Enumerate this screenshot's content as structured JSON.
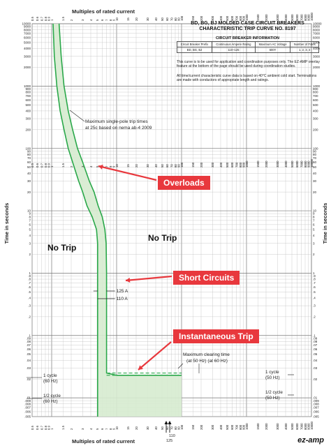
{
  "chart_data": {
    "type": "line",
    "title": "BD, BG, BJ MOLDED CASE CIRCUIT BREAKERS CHARACTERISTIC TRIP CURVE NO. 8197",
    "xlabel": "Multiples of rated current",
    "ylabel": "Time in seconds",
    "x_scale": "log",
    "y_scale": "log",
    "xlim": [
      0.5,
      10000
    ],
    "ylim": [
      0.005,
      10000
    ],
    "grid": true,
    "x_ticks": [
      "0.5",
      "0.6",
      "0.7",
      "0.8",
      "0.9",
      "1",
      "1.5",
      "2",
      "3",
      "4",
      "5",
      "6",
      "7",
      "8",
      "9",
      "10",
      "15",
      "20",
      "30",
      "40",
      "50",
      "60",
      "70",
      "80",
      "90",
      "100",
      "150",
      "200",
      "300",
      "400",
      "500",
      "600",
      "700",
      "800",
      "900",
      "1000",
      "1500",
      "2000",
      "3000",
      "4000",
      "5000",
      "6000",
      "7000",
      "8000",
      "9000",
      "10000"
    ],
    "y_ticks": [
      "10000",
      "9000",
      "8000",
      "7000",
      "6000",
      "5000",
      "4000",
      "3000",
      "2000",
      "1000",
      "900",
      "800",
      "700",
      "600",
      "500",
      "400",
      "300",
      "200",
      "100",
      "90",
      "80",
      "70",
      "60",
      "50",
      "40",
      "30",
      "20",
      "10",
      "9",
      "8",
      "7",
      "6",
      "5",
      "4",
      "3",
      "2",
      "1",
      ".9",
      ".8",
      ".7",
      ".6",
      ".5",
      ".4",
      ".3",
      ".2",
      ".1",
      ".09",
      ".08",
      ".07",
      ".06",
      ".05",
      ".04",
      ".03",
      ".02",
      ".01",
      ".009",
      ".008",
      ".007",
      ".006",
      ".005"
    ],
    "series": [
      {
        "values_x": [
          1.05,
          1.1,
          1.2,
          1.35,
          1.55,
          1.8,
          2.1,
          2.6,
          3.0,
          3.5,
          4.2,
          4.9,
          5.1,
          5.1,
          5.1,
          5.1
        ],
        "values_y": [
          10000,
          3000,
          1000,
          400,
          200,
          100,
          60,
          30,
          20,
          12,
          8,
          5,
          3,
          1,
          0.1,
          0.005
        ]
      },
      {
        "values_x": [
          1.3,
          1.4,
          1.55,
          1.8,
          2.1,
          2.5,
          3.0,
          3.8,
          4.5,
          5.2,
          6.0,
          6.6,
          6.9,
          7.0,
          7.0,
          7.0,
          7.0,
          10,
          30,
          100
        ],
        "values_y": [
          10000,
          3000,
          1000,
          400,
          200,
          100,
          60,
          30,
          20,
          12,
          8,
          5,
          3,
          1,
          0.1,
          0.035,
          0.025,
          0.023,
          0.023,
          0.023
        ]
      }
    ],
    "clearing_time_lines": {
      "hz50": 0.025,
      "hz60": 0.023,
      "x_start": 7,
      "x_end": 100
    },
    "instant_x": [
      5.1,
      7.0
    ],
    "annotations": {
      "max_single_pole": "Maximum single-pole trip times at 25c based on nema ab-4 2009",
      "max_clearing": "Maximum clearing time (at 50 Hz) (at 60 Hz)",
      "amp125": "125 A",
      "amp110": "110 A",
      "cycle1": "1 cycle (60 Hz)",
      "cycle_half": "1/2 cycle (60 Hz)",
      "cycle1_right": "1 cycle (50 Hz)",
      "cycle_half_right": "1/2 cycle (50 Hz)",
      "arrow110": "110",
      "arrow125": "125"
    },
    "colors": {
      "curve": "#2aa84a",
      "band_fill": "#d6ebcf",
      "grid": "#b8b8b8",
      "callout": "#e8383d"
    }
  },
  "header": {
    "title_line1": "BD, BG, BJ MOLDED CASE CIRCUIT BREAKERS",
    "title_line2": "CHARACTERISTIC TRIP CURVE NO. 8197",
    "info_heading": "CIRCUIT BREAKER INFORMATION",
    "table_headers": [
      "Circuit Breaker Prefix",
      "Continuous Ampere Rating",
      "Maximum AC Voltage",
      "Number of Poles"
    ],
    "table_row": [
      "BD, BG, BJ",
      "110~125",
      "600Y",
      "1, 2, 3, 4"
    ],
    "note1": "This curve is to be used for application and coordination purposes only. The EZ-AMP overlay feature at the bottom of the page should be used during coordination studies.",
    "note2": "All time/current characteristic curve data is based on 40°C ambient cold start. Terminations are made with conductors of appropriate length and ratings."
  },
  "callouts": {
    "overloads": "Overloads",
    "short_circuits": "Short Circuits",
    "instantaneous": "Instantaneous Trip",
    "no_trip_left": "No Trip",
    "no_trip_right": "No Trip"
  },
  "brand": "ez-amp"
}
